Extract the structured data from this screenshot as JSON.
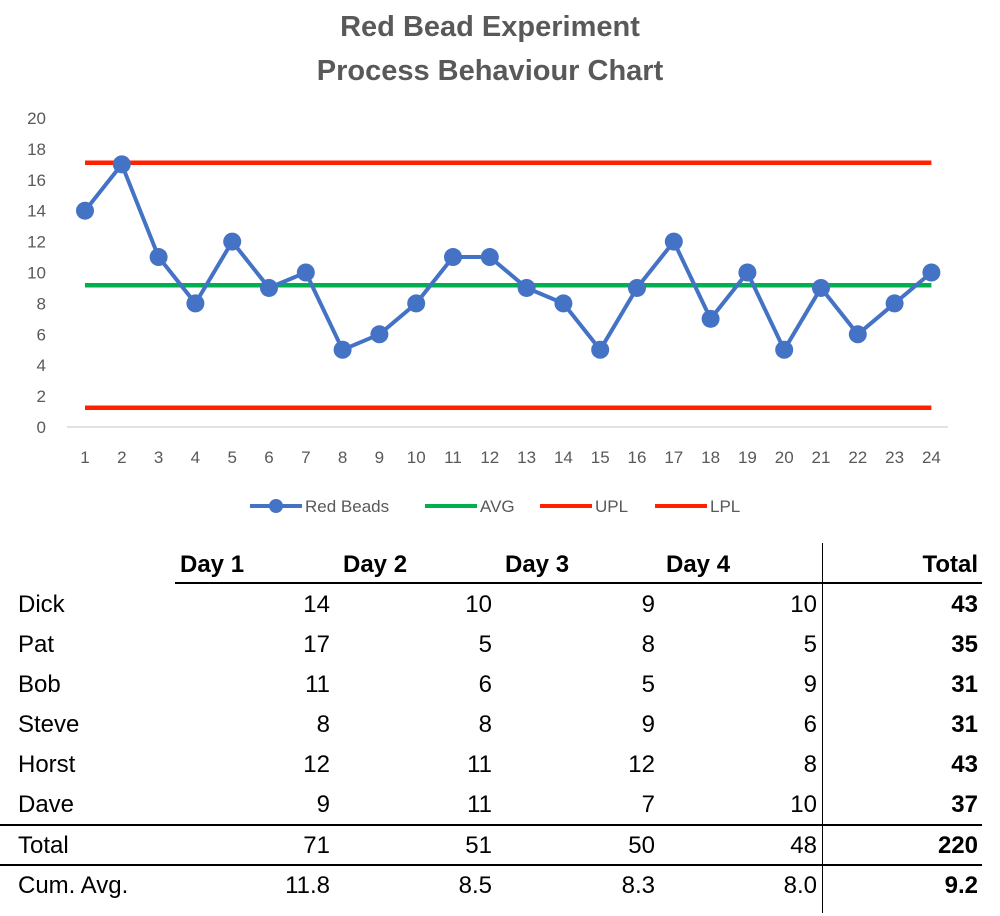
{
  "chart_data": {
    "type": "line",
    "title_lines": [
      "Red Bead Experiment",
      "Process Behaviour Chart"
    ],
    "x": [
      1,
      2,
      3,
      4,
      5,
      6,
      7,
      8,
      9,
      10,
      11,
      12,
      13,
      14,
      15,
      16,
      17,
      18,
      19,
      20,
      21,
      22,
      23,
      24
    ],
    "ylim": [
      0,
      20
    ],
    "yticks": [
      0,
      2,
      4,
      6,
      8,
      10,
      12,
      14,
      16,
      18,
      20
    ],
    "grid": false,
    "legend_position": "bottom",
    "series": [
      {
        "name": "Red Beads",
        "color": "#4472C4",
        "marker": "circle",
        "values": [
          14,
          17,
          11,
          8,
          12,
          9,
          10,
          5,
          6,
          8,
          11,
          11,
          9,
          8,
          5,
          9,
          12,
          7,
          10,
          5,
          9,
          6,
          8,
          10
        ]
      },
      {
        "name": "AVG",
        "color": "#00B050",
        "values": [
          9.17,
          9.17,
          9.17,
          9.17,
          9.17,
          9.17,
          9.17,
          9.17,
          9.17,
          9.17,
          9.17,
          9.17,
          9.17,
          9.17,
          9.17,
          9.17,
          9.17,
          9.17,
          9.17,
          9.17,
          9.17,
          9.17,
          9.17,
          9.17
        ]
      },
      {
        "name": "UPL",
        "color": "#FF2200",
        "values": [
          17.1,
          17.1,
          17.1,
          17.1,
          17.1,
          17.1,
          17.1,
          17.1,
          17.1,
          17.1,
          17.1,
          17.1,
          17.1,
          17.1,
          17.1,
          17.1,
          17.1,
          17.1,
          17.1,
          17.1,
          17.1,
          17.1,
          17.1,
          17.1
        ]
      },
      {
        "name": "LPL",
        "color": "#FF2200",
        "values": [
          1.25,
          1.25,
          1.25,
          1.25,
          1.25,
          1.25,
          1.25,
          1.25,
          1.25,
          1.25,
          1.25,
          1.25,
          1.25,
          1.25,
          1.25,
          1.25,
          1.25,
          1.25,
          1.25,
          1.25,
          1.25,
          1.25,
          1.25,
          1.25
        ]
      }
    ]
  },
  "table": {
    "headers": {
      "day1": "Day 1",
      "day2": "Day 2",
      "day3": "Day 3",
      "day4": "Day 4",
      "total": "Total"
    },
    "rows": [
      {
        "name": "Dick",
        "day1": "14",
        "day2": "10",
        "day3": "9",
        "day4": "10",
        "total": "43"
      },
      {
        "name": "Pat",
        "day1": "17",
        "day2": "5",
        "day3": "8",
        "day4": "5",
        "total": "35"
      },
      {
        "name": "Bob",
        "day1": "11",
        "day2": "6",
        "day3": "5",
        "day4": "9",
        "total": "31"
      },
      {
        "name": "Steve",
        "day1": "8",
        "day2": "8",
        "day3": "9",
        "day4": "6",
        "total": "31"
      },
      {
        "name": "Horst",
        "day1": "12",
        "day2": "11",
        "day3": "12",
        "day4": "8",
        "total": "43"
      },
      {
        "name": "Dave",
        "day1": "9",
        "day2": "11",
        "day3": "7",
        "day4": "10",
        "total": "37"
      }
    ],
    "total_row": {
      "name": "Total",
      "day1": "71",
      "day2": "51",
      "day3": "50",
      "day4": "48",
      "total": "220"
    },
    "avg_row": {
      "name": "Cum. Avg.",
      "day1": "11.8",
      "day2": "8.5",
      "day3": "8.3",
      "day4": "8.0",
      "total": "9.2"
    }
  }
}
